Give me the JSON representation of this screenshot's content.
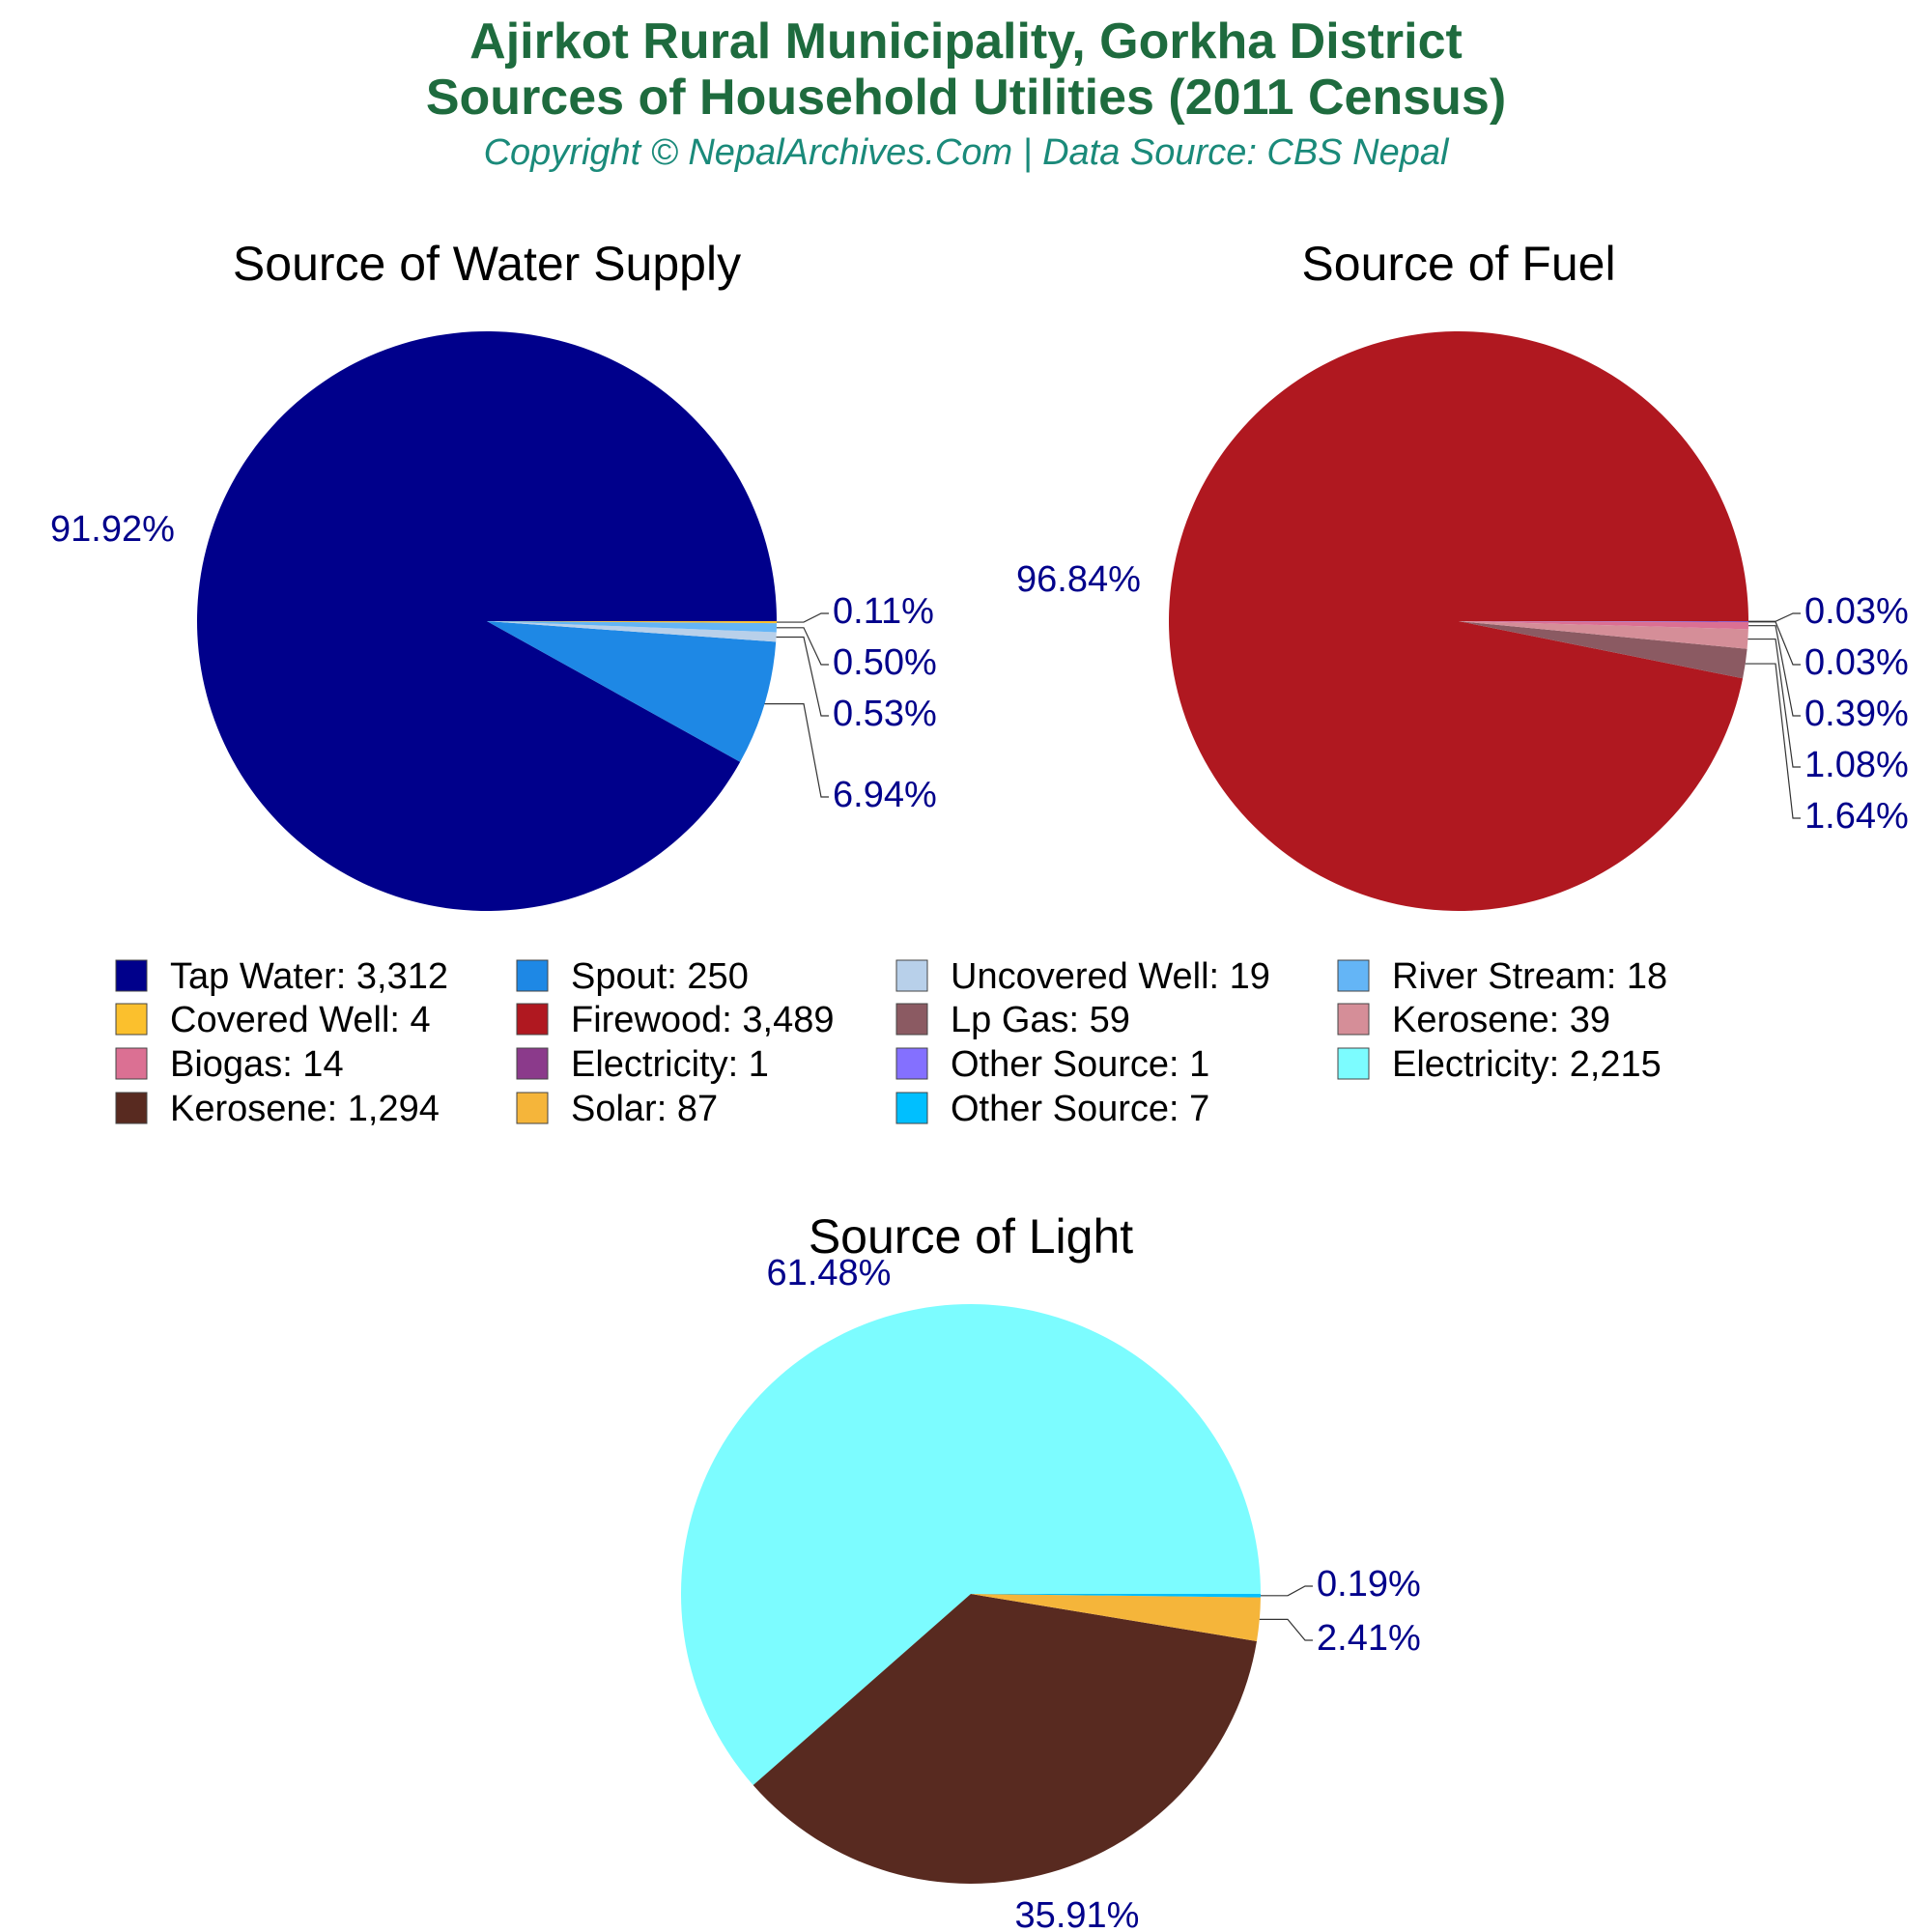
{
  "header": {
    "title_line1": "Ajirkot Rural Municipality, Gorkha District",
    "title_line2": "Sources of Household Utilities (2011 Census)",
    "copyright": "Copyright © NepalArchives.Com | Data Source: CBS Nepal"
  },
  "colors": {
    "title": "#1e6b3e",
    "copyright": "#1a8a7a",
    "percent_label": "#00008b"
  },
  "chart_data": [
    {
      "type": "pie",
      "title": "Source of Water Supply",
      "slices": [
        {
          "label": "Tap Water",
          "value": 3312,
          "percent": "91.92%",
          "color": "#00008b"
        },
        {
          "label": "Spout",
          "value": 250,
          "percent": "6.94%",
          "color": "#1e88e5"
        },
        {
          "label": "Uncovered Well",
          "value": 19,
          "percent": "0.53%",
          "color": "#b8d0ea"
        },
        {
          "label": "River Stream",
          "value": 18,
          "percent": "0.50%",
          "color": "#64b5f6"
        },
        {
          "label": "Covered Well",
          "value": 4,
          "percent": "0.11%",
          "color": "#fbc02d"
        }
      ]
    },
    {
      "type": "pie",
      "title": "Source of Fuel",
      "slices": [
        {
          "label": "Firewood",
          "value": 3489,
          "percent": "96.84%",
          "color": "#b01820"
        },
        {
          "label": "Lp Gas",
          "value": 59,
          "percent": "1.64%",
          "color": "#8b5a62"
        },
        {
          "label": "Kerosene",
          "value": 39,
          "percent": "1.08%",
          "color": "#d58e98"
        },
        {
          "label": "Biogas",
          "value": 14,
          "percent": "0.39%",
          "color": "#db7093"
        },
        {
          "label": "Electricity",
          "value": 1,
          "percent": "0.03%",
          "color": "#8b3a8b"
        },
        {
          "label": "Other Source",
          "value": 1,
          "percent": "0.03%",
          "color": "#8470ff"
        }
      ]
    },
    {
      "type": "pie",
      "title": "Source of Light",
      "slices": [
        {
          "label": "Electricity",
          "value": 2215,
          "percent": "61.48%",
          "color": "#7cfcff"
        },
        {
          "label": "Kerosene",
          "value": 1294,
          "percent": "35.91%",
          "color": "#582a20"
        },
        {
          "label": "Solar",
          "value": 87,
          "percent": "2.41%",
          "color": "#f5b53a"
        },
        {
          "label": "Other Source",
          "value": 7,
          "percent": "0.19%",
          "color": "#00bfff"
        }
      ]
    }
  ],
  "legend": [
    {
      "text": "Tap Water: 3,312",
      "color": "#00008b"
    },
    {
      "text": "Spout: 250",
      "color": "#1e88e5"
    },
    {
      "text": "Uncovered Well: 19",
      "color": "#b8d0ea"
    },
    {
      "text": "River Stream: 18",
      "color": "#64b5f6"
    },
    {
      "text": "Covered Well: 4",
      "color": "#fbc02d"
    },
    {
      "text": "Firewood: 3,489",
      "color": "#b01820"
    },
    {
      "text": "Lp Gas: 59",
      "color": "#8b5a62"
    },
    {
      "text": "Kerosene: 39",
      "color": "#d58e98"
    },
    {
      "text": "Biogas: 14",
      "color": "#db7093"
    },
    {
      "text": "Electricity: 1",
      "color": "#8b3a8b"
    },
    {
      "text": "Other Source: 1",
      "color": "#8470ff"
    },
    {
      "text": "Electricity: 2,215",
      "color": "#7cfcff"
    },
    {
      "text": "Kerosene: 1,294",
      "color": "#582a20"
    },
    {
      "text": "Solar: 87",
      "color": "#f5b53a"
    },
    {
      "text": "Other Source: 7",
      "color": "#00bfff"
    }
  ]
}
